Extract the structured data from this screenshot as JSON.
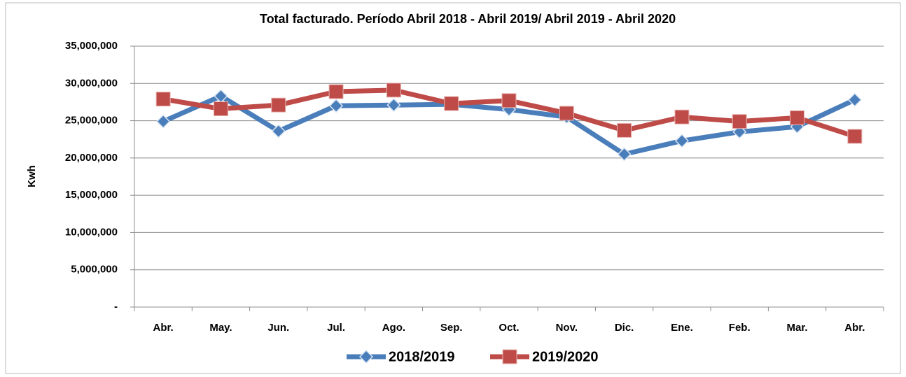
{
  "chart_data": {
    "type": "line",
    "title": "Total facturado. Período Abril 2018 - Abril 2019/  Abril  2019 - Abril 2020",
    "y_label": "Kwh",
    "categories": [
      "Abr.",
      "May.",
      "Jun.",
      "Jul.",
      "Ago.",
      "Sep.",
      "Oct.",
      "Nov.",
      "Dic.",
      "Ene.",
      "Feb.",
      "Mar.",
      "Abr."
    ],
    "series": [
      {
        "name": "2018/2019",
        "color": "#4a7ebb",
        "marker": "diamond",
        "values": [
          24900000,
          28300000,
          23600000,
          27000000,
          27100000,
          27200000,
          26500000,
          25500000,
          20500000,
          22300000,
          23500000,
          24200000,
          27800000
        ]
      },
      {
        "name": "2019/2020",
        "color": "#be4b48",
        "marker": "square",
        "values": [
          27900000,
          26600000,
          27100000,
          28900000,
          29100000,
          27300000,
          27700000,
          26000000,
          23700000,
          25500000,
          24900000,
          25400000,
          22900000
        ]
      }
    ],
    "ylim": [
      0,
      35000000
    ],
    "yticks": [
      {
        "value": 0,
        "label": "-"
      },
      {
        "value": 5000000,
        "label": "5,000,000"
      },
      {
        "value": 10000000,
        "label": "10,000,000"
      },
      {
        "value": 15000000,
        "label": "15,000,000"
      },
      {
        "value": 20000000,
        "label": "20,000,000"
      },
      {
        "value": 25000000,
        "label": "25,000,000"
      },
      {
        "value": 30000000,
        "label": "30,000,000"
      },
      {
        "value": 35000000,
        "label": "35,000,000"
      }
    ],
    "grid": true,
    "legend": "bottom"
  }
}
